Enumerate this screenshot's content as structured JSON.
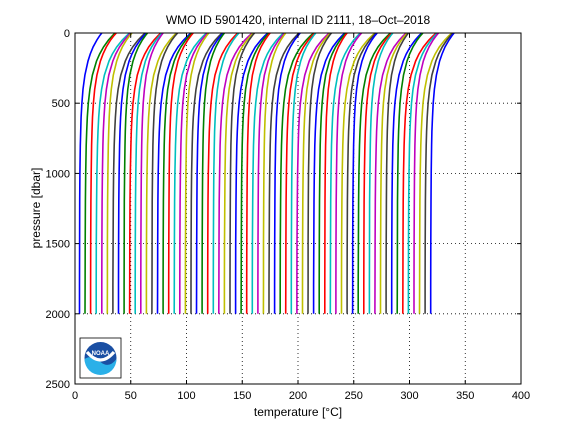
{
  "chart_data": {
    "type": "line",
    "title": "WMO ID 5901420, internal ID 2111, 18–Oct–2018",
    "xlabel": "temperature [°C]",
    "ylabel": "pressure [dbar]",
    "xlim": [
      0,
      400
    ],
    "ylim": [
      2500,
      0
    ],
    "y_axis_direction": "reversed",
    "xticks": [
      "0",
      "50",
      "100",
      "150",
      "200",
      "250",
      "300",
      "350",
      "400"
    ],
    "yticks": [
      "0",
      "500",
      "1000",
      "1500",
      "2000"
    ],
    "grid": "dotted",
    "legend": "none",
    "profile_series": {
      "description": "stacked temperature profiles, each offset along x",
      "count": 64,
      "x_offset_first": 4,
      "x_offset_step": 5,
      "deep_value_at_2000": 0,
      "surface_gain_range": [
        20,
        30
      ],
      "pressure_levels": [
        0,
        20,
        50,
        100,
        150,
        200,
        300,
        400,
        500,
        600,
        700,
        800,
        1000,
        1200,
        1500,
        1800,
        2000
      ]
    },
    "colors": [
      "#0000ff",
      "#008000",
      "#ff0000",
      "#00bfbf",
      "#bf00bf",
      "#bfbf00",
      "#404040"
    ],
    "logo": {
      "icon": "noaa-logo-icon",
      "text": "NOAA"
    }
  }
}
